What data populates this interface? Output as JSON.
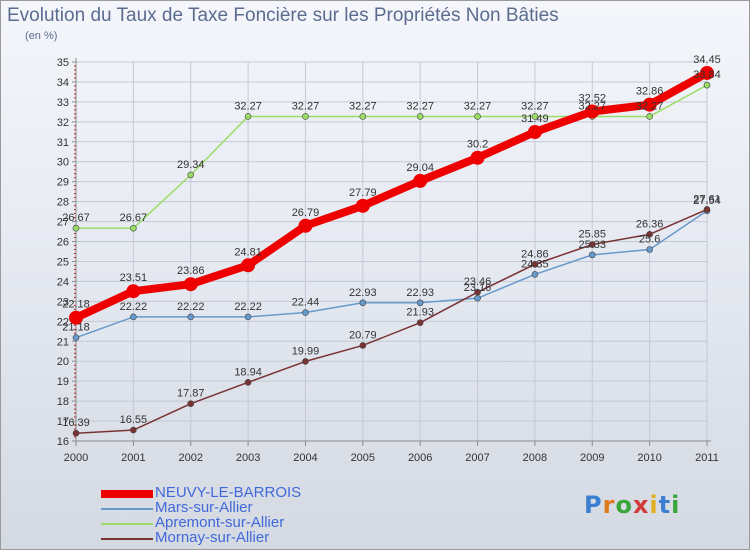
{
  "title": "Evolution du Taux de Taxe Foncière sur les Propriétés Non Bâties",
  "subtitle": "(en %)",
  "logo": "Proxiti",
  "colors": {
    "grid": "#c4c9d4",
    "axis": "#8a8a8a",
    "tick_marks": "#cc0000"
  },
  "chart_data": {
    "type": "line",
    "title": "Evolution du Taux de Taxe Foncière sur les Propriétés Non Bâties",
    "ylabel": "(en %)",
    "xlabel": "",
    "x": [
      "2000",
      "2001",
      "2002",
      "2003",
      "2004",
      "2005",
      "2006",
      "2007",
      "2008",
      "2009",
      "2010",
      "2011"
    ],
    "ylim": [
      16,
      35
    ],
    "yticks": [
      16,
      17,
      18,
      19,
      20,
      21,
      22,
      23,
      24,
      25,
      26,
      27,
      28,
      29,
      30,
      31,
      32,
      33,
      34,
      35
    ],
    "grid": true,
    "legend_position": "bottom-left",
    "series": [
      {
        "name": "NEUVY-LE-BARROIS",
        "color": "#ee0000",
        "width": 8,
        "values": [
          22.18,
          23.51,
          23.86,
          24.81,
          26.79,
          27.79,
          29.04,
          30.2,
          31.49,
          32.52,
          32.86,
          34.45
        ],
        "labels": [
          "22.18",
          "23.51",
          "23.86",
          "24.81",
          "26.79",
          "27.79",
          "29.04",
          "30.2",
          "31.49",
          "32.52",
          "32.86",
          "34.45"
        ]
      },
      {
        "name": "Mars-sur-Allier",
        "color": "#6699cc",
        "width": 1.5,
        "values": [
          21.18,
          22.22,
          22.22,
          22.22,
          22.44,
          22.93,
          22.93,
          23.16,
          24.35,
          25.33,
          25.6,
          27.54
        ],
        "labels": [
          "21.18",
          "22.22",
          "22.22",
          "22.22",
          "22.44",
          "22.93",
          "22.93",
          "23.16",
          "24.35",
          "25.33",
          "25.6",
          "27.54"
        ]
      },
      {
        "name": "Apremont-sur-Allier",
        "color": "#99dd66",
        "width": 1.5,
        "values": [
          26.67,
          26.67,
          29.34,
          32.27,
          32.27,
          32.27,
          32.27,
          32.27,
          32.27,
          32.27,
          32.27,
          33.84
        ],
        "labels": [
          "26.67",
          "26.67",
          "29.34",
          "32.27",
          "32.27",
          "32.27",
          "32.27",
          "32.27",
          "32.27",
          "32.27",
          "32.27",
          "33.84"
        ]
      },
      {
        "name": "Mornay-sur-Allier",
        "color": "#7a3333",
        "width": 1.5,
        "values": [
          16.39,
          16.55,
          17.87,
          18.94,
          19.99,
          20.79,
          21.93,
          23.46,
          24.86,
          25.85,
          26.36,
          27.61
        ],
        "labels": [
          "16.39",
          "16.55",
          "17.87",
          "18.94",
          "19.99",
          "20.79",
          "21.93",
          "23.46",
          "24.86",
          "25.85",
          "26.36",
          "27.61"
        ]
      }
    ]
  }
}
